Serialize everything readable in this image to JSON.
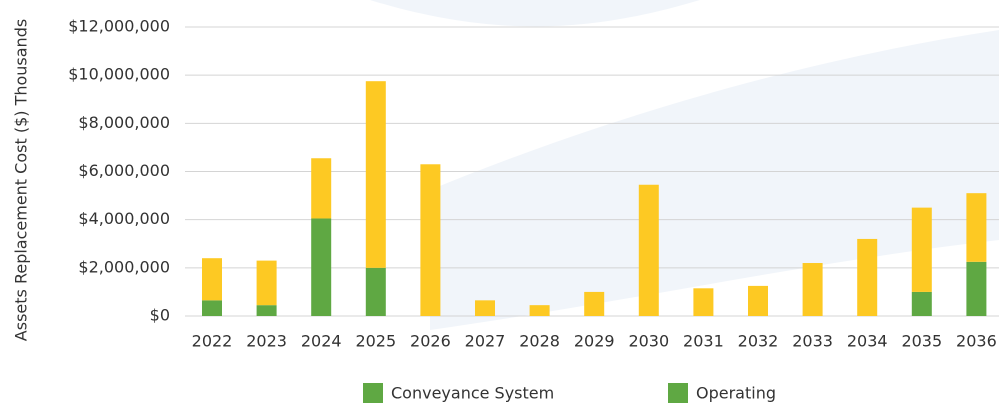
{
  "chart_data": {
    "type": "stacked_bar",
    "y_label": "Assets Replacement Cost ($) Thousands",
    "categories": [
      "2022",
      "2023",
      "2024",
      "2025",
      "2026",
      "2027",
      "2028",
      "2029",
      "2030",
      "2031",
      "2032",
      "2033",
      "2034",
      "2035",
      "2036"
    ],
    "series": [
      {
        "name": "Conveyance System",
        "color": "#5fa843",
        "legend_color": "#5fa843",
        "values": [
          650000,
          450000,
          4050000,
          2000000,
          0,
          0,
          0,
          0,
          0,
          0,
          0,
          0,
          0,
          1000000,
          2250000
        ]
      },
      {
        "name": "Operating",
        "color": "#fdc923",
        "legend_color": "#5fa843",
        "values": [
          1750000,
          1850000,
          2500000,
          7750000,
          6300000,
          650000,
          450000,
          1000000,
          5450000,
          1150000,
          1250000,
          2200000,
          3200000,
          3500000,
          2850000
        ]
      }
    ],
    "ylim": [
      0,
      12000000
    ],
    "yticks": [
      {
        "value": 0,
        "label": "$0"
      },
      {
        "value": 2000000,
        "label": "$2,000,000"
      },
      {
        "value": 4000000,
        "label": "$4,000,000"
      },
      {
        "value": 6000000,
        "label": "$6,000,000"
      },
      {
        "value": 8000000,
        "label": "$8,000,000"
      },
      {
        "value": 10000000,
        "label": "$10,000,000"
      },
      {
        "value": 12000000,
        "label": "$12,000,000"
      }
    ],
    "grid": true
  }
}
